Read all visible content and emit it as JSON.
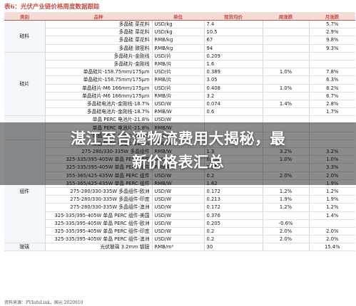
{
  "table_title": "表6：光伏产业链价格周度数据跟踪",
  "headers": {
    "category": "类别",
    "product": "品种",
    "unit": "单位",
    "price": "现货均价",
    "weekly": "周涨跌",
    "monthly": "月涨跌"
  },
  "categories": [
    {
      "label": "硅料",
      "rows": 4
    },
    {
      "label": "硅片",
      "rows": 8
    },
    {
      "label": "",
      "rows": 3
    },
    {
      "label": "组件",
      "rows": 13
    },
    {
      "label": "玻璃",
      "rows": 1
    }
  ],
  "rows": [
    {
      "product": "多晶硅 菜花料",
      "unit": "USD/kg",
      "price": "7.4",
      "weekly": "",
      "monthly": "5.7%"
    },
    {
      "product": "多晶硅 菜花料",
      "unit": "USD/kg",
      "price": "10.5",
      "weekly": "",
      "monthly": "2.9%"
    },
    {
      "product": "多晶硅 菜花料",
      "unit": "RMB/kg",
      "price": "67",
      "weekly": "",
      "monthly": "9.8%"
    },
    {
      "product": "多晶硅 致密料",
      "unit": "RMB/kg",
      "price": "94",
      "weekly": "",
      "monthly": "9.3%"
    },
    {
      "product": "多晶硅片-金刚线",
      "unit": "USD/片",
      "price": "0.209",
      "weekly": "",
      "monthly": ""
    },
    {
      "product": "多晶硅片-金刚线",
      "unit": "RMB/片",
      "price": "1.6",
      "weekly": "",
      "monthly": ""
    },
    {
      "product": "单晶硅片-158.75mm/175μm",
      "unit": "USD/片",
      "price": "0.389",
      "weekly": "1.0%",
      "monthly": "7.8%"
    },
    {
      "product": "单晶硅片-158.75mm/175μm",
      "unit": "RMB/片",
      "price": "3.05",
      "weekly": "",
      "monthly": "6.3%"
    },
    {
      "product": "单晶硅片-M6 166mm/175μm",
      "unit": "USD/片",
      "price": "0.408",
      "weekly": "1.0%",
      "monthly": "8.2%"
    },
    {
      "product": "单晶硅片-M6 166mm/175μm",
      "unit": "RMB/片",
      "price": "3.2",
      "weekly": "",
      "monthly": "6.7%"
    },
    {
      "product": "多晶硅电池片-金刚线-18.7%",
      "unit": "USD/W",
      "price": "0.074",
      "weekly": "1.4%",
      "monthly": "2.8%"
    },
    {
      "product": "多晶硅电池片-金刚线-18.7%",
      "unit": "RMB/W",
      "price": "0.6",
      "weekly": "",
      "monthly": "1.7%"
    },
    {
      "product": "单晶 PERC 电池片-21.8%",
      "unit": "USD/W",
      "price": "",
      "weekly": "",
      "monthly": ""
    },
    {
      "product": "单晶 PERC 电池片-21.8%",
      "unit": "RMB/W",
      "price": "",
      "weekly": "",
      "monthly": ""
    },
    {
      "product": "单晶 PERC 电池片-21.9%",
      "unit": "USD/W",
      "price": "",
      "weekly": "",
      "monthly": ""
    },
    {
      "product": "单晶 PERC 电池片-21.9%",
      "unit": "RMB/W",
      "price": "",
      "weekly": "",
      "monthly": ""
    },
    {
      "product": "275-280/330-335W 多晶组件",
      "unit": "RMB/W",
      "price": "1.3",
      "weekly": "3.2%",
      "monthly": "3.2%"
    },
    {
      "product": "325-335/395-405W 单晶 PERC 组件",
      "unit": "USD/W",
      "price": "0.196",
      "weekly": "1.0%",
      "monthly": "1.0%"
    },
    {
      "product": "325-335/395-405W 单晶 PERC 组件",
      "unit": "RMB/W",
      "price": "1.55",
      "weekly": "",
      "monthly": "3.3%"
    },
    {
      "product": "355-365/425-435W 单晶 PERC 组件",
      "unit": "USD/W",
      "price": "0.2",
      "weekly": "2.0%",
      "monthly": "2.0%"
    },
    {
      "product": "355-365/425-435W 单晶 PERC 组件",
      "unit": "RMB/W",
      "price": "1.62",
      "weekly": "",
      "monthly": "1.9%"
    },
    {
      "product": "275-280/330-335W 多晶组件-欧洲",
      "unit": "USD/W",
      "price": "0.172",
      "weekly": "1.2%",
      "monthly": "1.2%"
    },
    {
      "product": "275-280/330-335W 多晶组件-印度",
      "unit": "USD/W",
      "price": "0.213",
      "weekly": "1.9%",
      "monthly": "1.9%"
    },
    {
      "product": "275-280/330-335W 多晶组件-澳洲",
      "unit": "USD/W",
      "price": "0.172",
      "weekly": "1.2%",
      "monthly": "1.2%"
    },
    {
      "product": "325-335/395-405W 单晶 PERC 组件-美国",
      "unit": "USD/W",
      "price": "0.376",
      "weekly": "",
      "monthly": "1.4%"
    },
    {
      "product": "325-335/395-405W 单晶 PERC 组件-欧洲",
      "unit": "USD/W",
      "price": "0.205",
      "weekly": "-0.6%",
      "monthly": ""
    },
    {
      "product": "325-335/395-405W 单晶 PERC 组件-印度",
      "unit": "USD/W",
      "price": "0.2",
      "weekly": "2.0%",
      "monthly": "2.0%"
    },
    {
      "product": "325-335/395-405W 单晶 PERC 组件-澳洲",
      "unit": "USD/W",
      "price": "0.2",
      "weekly": "2.0%",
      "monthly": "2.0%"
    },
    {
      "product": "光伏玻璃 3.2mm 镀膜",
      "unit": "RMB/m²",
      "price": "30",
      "weekly": "",
      "monthly": "15.4%"
    }
  ],
  "source_note": "资料来源：PVInfoLink，国元 2020910",
  "headline": {
    "line1": "湛江至台湾物流费用大揭秘，最",
    "line2": "新价格表汇总"
  }
}
